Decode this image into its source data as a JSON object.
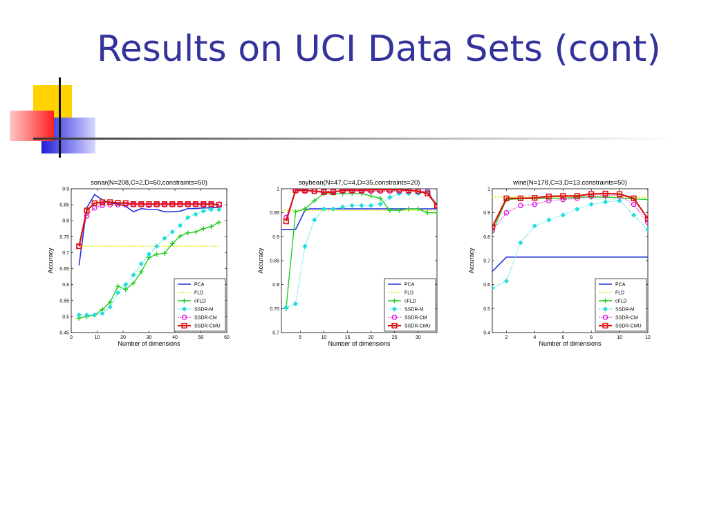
{
  "slide": {
    "title": "Results on UCI Data Sets (cont)"
  },
  "colors": {
    "title": "#33339b",
    "PCA": "#2433dd",
    "FLD": "#e6e600",
    "cFLD": "#22cc22",
    "SSDR-M": "#22dddd",
    "SSDR-CM": "#dd00dd",
    "SSDR-CMU": "#dd1111"
  },
  "chart_data": [
    {
      "type": "line",
      "title": "sonar(N=208,C=2,D=60,constraints=50)",
      "xlabel": "Number of dimensions",
      "ylabel": "Accuracy",
      "xlim": [
        0,
        60
      ],
      "ylim": [
        0.45,
        0.9
      ],
      "xticks": [
        0,
        10,
        20,
        30,
        40,
        50,
        60
      ],
      "yticks": [
        0.45,
        0.5,
        0.55,
        0.6,
        0.65,
        0.7,
        0.75,
        0.8,
        0.85,
        0.9
      ],
      "ytick_labels": [
        "0.45",
        "0.5",
        "0.55",
        "0.6",
        "0.65",
        "0.7",
        "0.75",
        "0.8",
        "0.85",
        "0.9"
      ],
      "legend_position": "bottom-right",
      "series": [
        {
          "name": "PCA",
          "x": [
            3,
            6,
            9,
            12,
            15,
            18,
            21,
            24,
            27,
            30,
            33,
            36,
            39,
            42,
            45,
            48,
            51,
            54,
            57
          ],
          "y": [
            0.66,
            0.84,
            0.882,
            0.865,
            0.855,
            0.853,
            0.845,
            0.828,
            0.838,
            0.835,
            0.835,
            0.828,
            0.828,
            0.83,
            0.838,
            0.838,
            0.84,
            0.84,
            0.842
          ]
        },
        {
          "name": "FLD",
          "x": [
            3,
            57
          ],
          "y": [
            0.72,
            0.72
          ]
        },
        {
          "name": "cFLD",
          "x": [
            3,
            6,
            9,
            12,
            15,
            18,
            21,
            24,
            27,
            30,
            33,
            36,
            39,
            42,
            45,
            48,
            51,
            54,
            57
          ],
          "y": [
            0.495,
            0.5,
            0.505,
            0.522,
            0.545,
            0.595,
            0.585,
            0.605,
            0.64,
            0.685,
            0.695,
            0.698,
            0.728,
            0.752,
            0.762,
            0.765,
            0.775,
            0.782,
            0.795
          ]
        },
        {
          "name": "SSDR-M",
          "x": [
            3,
            6,
            9,
            12,
            15,
            18,
            21,
            24,
            27,
            30,
            33,
            36,
            39,
            42,
            45,
            48,
            51,
            54,
            57
          ],
          "y": [
            0.505,
            0.505,
            0.505,
            0.51,
            0.53,
            0.575,
            0.6,
            0.63,
            0.665,
            0.695,
            0.72,
            0.745,
            0.765,
            0.785,
            0.81,
            0.82,
            0.83,
            0.835,
            0.835
          ]
        },
        {
          "name": "SSDR-CM",
          "x": [
            3,
            6,
            9,
            12,
            15,
            18,
            21,
            24,
            27,
            30,
            33,
            36,
            39,
            42,
            45,
            48,
            51,
            54,
            57
          ],
          "y": [
            0.72,
            0.815,
            0.84,
            0.848,
            0.85,
            0.85,
            0.85,
            0.85,
            0.85,
            0.848,
            0.85,
            0.85,
            0.85,
            0.85,
            0.85,
            0.85,
            0.85,
            0.85,
            0.852
          ]
        },
        {
          "name": "SSDR-CMU",
          "x": [
            3,
            6,
            9,
            12,
            15,
            18,
            21,
            24,
            27,
            30,
            33,
            36,
            39,
            42,
            45,
            48,
            51,
            54,
            57
          ],
          "y": [
            0.72,
            0.832,
            0.855,
            0.858,
            0.858,
            0.856,
            0.855,
            0.852,
            0.852,
            0.852,
            0.852,
            0.852,
            0.852,
            0.852,
            0.852,
            0.852,
            0.852,
            0.852,
            0.85
          ]
        }
      ]
    },
    {
      "type": "line",
      "title": "soybean(N=47,C=4,D=35,constraints=20)",
      "xlabel": "Number of dimensions",
      "ylabel": "Accuracy",
      "xlim": [
        1,
        34
      ],
      "ylim": [
        0.7,
        1.0
      ],
      "xticks": [
        5,
        10,
        15,
        20,
        25,
        30
      ],
      "yticks": [
        0.7,
        0.75,
        0.8,
        0.85,
        0.9,
        0.95,
        1.0
      ],
      "ytick_labels": [
        "0.7",
        "0.75",
        "0.8",
        "0.85",
        "0.9",
        "0.95",
        "1"
      ],
      "legend_position": "bottom-right",
      "series": [
        {
          "name": "PCA",
          "x": [
            1,
            2,
            3,
            4,
            5,
            6,
            7,
            8,
            10,
            12,
            14,
            16,
            18,
            20,
            22,
            24,
            26,
            28,
            30,
            32,
            34
          ],
          "y": [
            0.915,
            0.915,
            0.915,
            0.915,
            0.935,
            0.955,
            0.958,
            0.958,
            0.958,
            0.958,
            0.958,
            0.958,
            0.958,
            0.958,
            0.958,
            0.958,
            0.958,
            0.958,
            0.958,
            0.958,
            0.958
          ]
        },
        {
          "name": "FLD",
          "x": [
            1,
            34
          ],
          "y": [
            0.955,
            0.955
          ]
        },
        {
          "name": "cFLD",
          "x": [
            2,
            4,
            6,
            8,
            10,
            12,
            14,
            16,
            18,
            20,
            22,
            24,
            26,
            28,
            30,
            32,
            34
          ],
          "y": [
            0.75,
            0.952,
            0.958,
            0.975,
            0.99,
            0.99,
            0.99,
            0.99,
            0.99,
            0.985,
            0.98,
            0.955,
            0.955,
            0.958,
            0.958,
            0.95,
            0.95
          ]
        },
        {
          "name": "SSDR-M",
          "x": [
            2,
            4,
            6,
            8,
            10,
            12,
            14,
            16,
            18,
            20,
            22,
            24,
            26,
            28,
            30,
            32,
            34
          ],
          "y": [
            0.752,
            0.76,
            0.88,
            0.935,
            0.958,
            0.958,
            0.962,
            0.965,
            0.965,
            0.965,
            0.968,
            0.982,
            0.99,
            0.99,
            0.99,
            0.995,
            0.97
          ]
        },
        {
          "name": "SSDR-CM",
          "x": [
            2,
            4,
            6,
            8,
            10,
            12,
            14,
            16,
            18,
            20,
            22,
            24,
            26,
            28,
            30,
            32,
            34
          ],
          "y": [
            0.94,
            0.995,
            0.995,
            0.995,
            0.995,
            0.995,
            0.995,
            0.995,
            0.995,
            0.995,
            0.995,
            0.995,
            0.995,
            0.995,
            0.995,
            0.995,
            0.965
          ]
        },
        {
          "name": "SSDR-CMU",
          "x": [
            2,
            4,
            6,
            8,
            10,
            12,
            14,
            16,
            18,
            20,
            22,
            24,
            26,
            28,
            30,
            32,
            34
          ],
          "y": [
            0.932,
            0.997,
            0.997,
            0.995,
            0.993,
            0.993,
            0.997,
            0.997,
            0.997,
            0.998,
            0.998,
            0.998,
            0.998,
            0.997,
            0.995,
            0.99,
            0.965
          ]
        }
      ]
    },
    {
      "type": "line",
      "title": "wine(N=178,C=3,D=13,constraints=50)",
      "xlabel": "Number of dimensions",
      "ylabel": "Accuracy",
      "xlim": [
        1,
        12
      ],
      "ylim": [
        0.4,
        1.0
      ],
      "xticks": [
        2,
        4,
        6,
        8,
        10,
        12
      ],
      "yticks": [
        0.4,
        0.5,
        0.6,
        0.7,
        0.8,
        0.9,
        1.0
      ],
      "ytick_labels": [
        "0.4",
        "0.5",
        "0.6",
        "0.7",
        "0.8",
        "0.9",
        "1"
      ],
      "legend_position": "bottom-right",
      "series": [
        {
          "name": "PCA",
          "x": [
            1,
            2,
            3,
            4,
            5,
            6,
            7,
            8,
            9,
            10,
            11,
            12
          ],
          "y": [
            0.655,
            0.715,
            0.715,
            0.715,
            0.715,
            0.715,
            0.715,
            0.715,
            0.715,
            0.715,
            0.715,
            0.715
          ]
        },
        {
          "name": "FLD",
          "x": [
            1,
            12
          ],
          "y": [
            0.965,
            0.965
          ]
        },
        {
          "name": "cFLD",
          "x": [
            1,
            2,
            3,
            4,
            5,
            6,
            7,
            8,
            9,
            10,
            11,
            12
          ],
          "y": [
            0.82,
            0.955,
            0.958,
            0.96,
            0.96,
            0.96,
            0.965,
            0.965,
            0.965,
            0.962,
            0.958,
            0.955
          ]
        },
        {
          "name": "SSDR-M",
          "x": [
            1,
            2,
            3,
            4,
            5,
            6,
            7,
            8,
            9,
            10,
            11,
            12
          ],
          "y": [
            0.585,
            0.615,
            0.775,
            0.845,
            0.87,
            0.89,
            0.915,
            0.935,
            0.945,
            0.95,
            0.89,
            0.83
          ]
        },
        {
          "name": "SSDR-CM",
          "x": [
            1,
            2,
            3,
            4,
            5,
            6,
            7,
            8,
            9,
            10,
            11,
            12
          ],
          "y": [
            0.825,
            0.9,
            0.93,
            0.935,
            0.95,
            0.955,
            0.96,
            0.968,
            0.972,
            0.97,
            0.935,
            0.86
          ]
        },
        {
          "name": "SSDR-CMU",
          "x": [
            1,
            2,
            3,
            4,
            5,
            6,
            7,
            8,
            9,
            10,
            11,
            12
          ],
          "y": [
            0.84,
            0.96,
            0.96,
            0.962,
            0.968,
            0.97,
            0.97,
            0.978,
            0.98,
            0.978,
            0.96,
            0.875
          ]
        }
      ]
    }
  ]
}
